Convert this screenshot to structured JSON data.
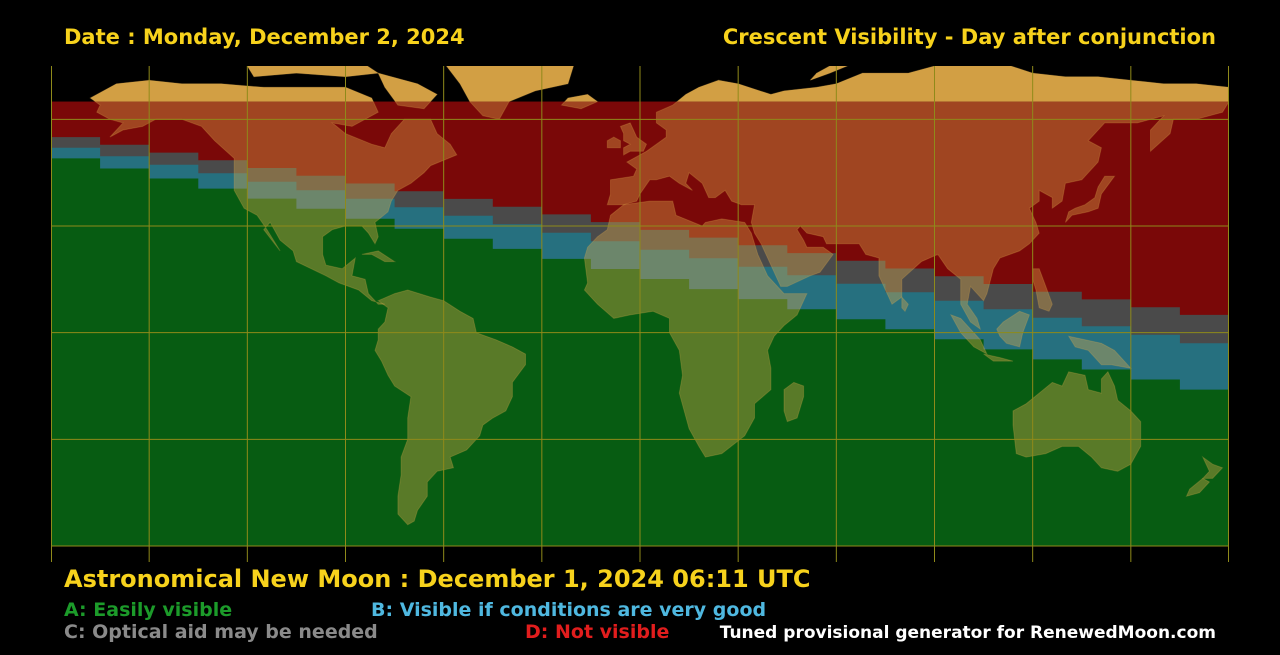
{
  "header": {
    "date_label": "Date : Monday, December 2, 2024",
    "title": "Crescent Visibility - Day after conjunction"
  },
  "footer": {
    "new_moon": "Astronomical New Moon : December 1, 2024 06:11 UTC",
    "credit": "Tuned provisional generator for RenewedMoon.com"
  },
  "legend": [
    {
      "key": "A",
      "text": "A: Easily visible",
      "color": "#1c9b2a"
    },
    {
      "key": "B",
      "text": "B: Visible if conditions are very good",
      "color": "#4fb8e0"
    },
    {
      "key": "C",
      "text": "C: Optical aid may be needed",
      "color": "#8a8a8a"
    },
    {
      "key": "D",
      "text": "D: Not visible",
      "color": "#e11d1d"
    }
  ],
  "map": {
    "zone_colors": {
      "A": "#075c12",
      "B": "#26707f",
      "C": "#4a4a4a",
      "D": "#7a0808",
      "no_data": "#000000"
    },
    "land_tint": "#e0ac4c",
    "graticule_color": "#8f8a1a",
    "longitudes": [
      -180,
      -150,
      -120,
      -90,
      -60,
      -30,
      0,
      30,
      60,
      90,
      120,
      150,
      180
    ],
    "latitudes": [
      -60,
      -30,
      0,
      30,
      60
    ],
    "no_data_north_of_lat": 65,
    "zone_boundaries": [
      {
        "zone": "D",
        "lat_start": 55,
        "lat_end": 5
      },
      {
        "zone": "C",
        "lat_start": 52,
        "lat_end": -3
      },
      {
        "zone": "B",
        "lat_start": 49,
        "lat_end": -16
      }
    ]
  }
}
